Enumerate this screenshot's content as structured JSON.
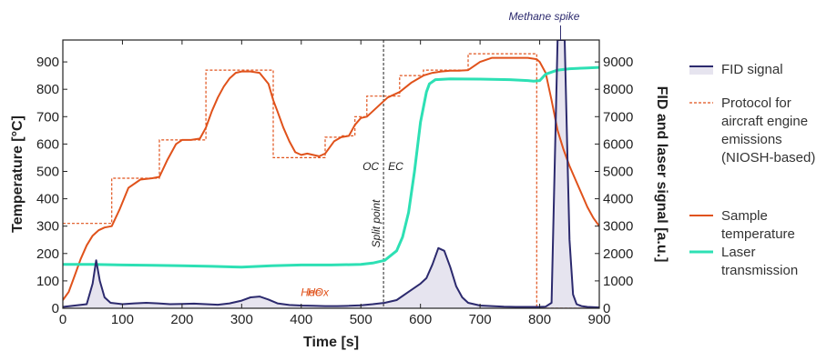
{
  "chart_data": {
    "type": "line",
    "xlabel": "Time [s]",
    "ylabel_left": "Temperature [°C]",
    "ylabel_right": "FID and laser signal [a.u.]",
    "xlim": [
      0,
      900
    ],
    "ylim_left": [
      0,
      980
    ],
    "ylim_right": [
      0,
      9800
    ],
    "x_ticks": [
      0,
      100,
      200,
      300,
      400,
      500,
      600,
      700,
      800,
      900
    ],
    "y_left_ticks": [
      0,
      100,
      200,
      300,
      400,
      500,
      600,
      700,
      800,
      900
    ],
    "y_right_ticks": [
      0,
      1000,
      2000,
      3000,
      4000,
      5000,
      6000,
      7000,
      8000,
      9000
    ],
    "grid": false,
    "legend_position": "right",
    "series": [
      {
        "name": "FID signal",
        "axis": "right",
        "style": "filled-line",
        "color": "#2c2a6e",
        "fill": "#e6e4ef",
        "x": [
          0,
          40,
          50,
          56,
          62,
          70,
          80,
          100,
          120,
          140,
          160,
          180,
          200,
          220,
          240,
          260,
          280,
          300,
          315,
          330,
          345,
          360,
          380,
          400,
          420,
          440,
          460,
          480,
          500,
          520,
          540,
          560,
          580,
          600,
          610,
          620,
          630,
          640,
          650,
          660,
          670,
          680,
          700,
          720,
          740,
          760,
          780,
          800,
          810,
          820,
          826,
          830,
          834,
          838,
          842,
          846,
          850,
          856,
          862,
          870,
          880,
          900
        ],
        "values": [
          50,
          150,
          900,
          1750,
          1000,
          400,
          200,
          150,
          180,
          200,
          180,
          150,
          160,
          170,
          150,
          130,
          180,
          280,
          400,
          430,
          320,
          180,
          120,
          100,
          90,
          80,
          80,
          90,
          110,
          150,
          200,
          300,
          600,
          900,
          1100,
          1600,
          2200,
          2100,
          1500,
          800,
          400,
          200,
          100,
          80,
          60,
          50,
          50,
          50,
          60,
          200,
          6000,
          9800,
          9800,
          9800,
          9800,
          6000,
          2500,
          500,
          150,
          80,
          50,
          30
        ]
      },
      {
        "name": "Protocol for aircraft engine emissions (NIOSH-based)",
        "axis": "left",
        "style": "dashed-step",
        "color": "#e0521b",
        "x": [
          0,
          82,
          82,
          162,
          162,
          240,
          240,
          353,
          353,
          440,
          440,
          467,
          467,
          490,
          490,
          510,
          510,
          530,
          530,
          545,
          545,
          565,
          565,
          585,
          585,
          605,
          605,
          635,
          635,
          680,
          680,
          795,
          795,
          900
        ],
        "values": [
          310,
          310,
          475,
          475,
          615,
          615,
          870,
          870,
          550,
          550,
          625,
          625,
          630,
          630,
          700,
          700,
          775,
          775,
          775,
          775,
          775,
          775,
          850,
          850,
          850,
          850,
          870,
          870,
          870,
          870,
          930,
          930,
          0,
          0
        ]
      },
      {
        "name": "Sample temperature",
        "axis": "left",
        "style": "line",
        "color": "#e0521b",
        "x": [
          0,
          10,
          20,
          30,
          40,
          50,
          60,
          70,
          82,
          95,
          110,
          130,
          150,
          162,
          175,
          190,
          200,
          215,
          230,
          240,
          250,
          260,
          270,
          280,
          290,
          300,
          315,
          330,
          345,
          353,
          360,
          370,
          380,
          390,
          400,
          410,
          420,
          430,
          440,
          455,
          467,
          480,
          490,
          500,
          510,
          520,
          530,
          545,
          565,
          585,
          605,
          620,
          635,
          650,
          665,
          680,
          700,
          720,
          740,
          760,
          780,
          795,
          800,
          810,
          820,
          830,
          840,
          850,
          860,
          870,
          880,
          890,
          900
        ],
        "values": [
          30,
          60,
          120,
          180,
          230,
          265,
          285,
          295,
          300,
          360,
          440,
          470,
          475,
          480,
          540,
          600,
          615,
          615,
          620,
          660,
          720,
          770,
          810,
          840,
          860,
          865,
          865,
          860,
          820,
          760,
          720,
          660,
          610,
          570,
          560,
          565,
          560,
          555,
          565,
          610,
          625,
          630,
          670,
          695,
          700,
          720,
          740,
          770,
          790,
          825,
          850,
          860,
          865,
          868,
          868,
          870,
          900,
          915,
          915,
          915,
          915,
          910,
          900,
          860,
          760,
          650,
          580,
          520,
          470,
          420,
          370,
          330,
          300
        ]
      },
      {
        "name": "Laser transmission",
        "axis": "right",
        "style": "line",
        "color": "#2de0b4",
        "x": [
          0,
          50,
          100,
          150,
          200,
          250,
          300,
          350,
          400,
          450,
          500,
          520,
          540,
          560,
          570,
          580,
          590,
          600,
          610,
          615,
          625,
          650,
          700,
          750,
          780,
          790,
          800,
          810,
          830,
          850,
          880,
          900
        ],
        "values": [
          1600,
          1600,
          1580,
          1570,
          1550,
          1530,
          1500,
          1550,
          1580,
          1580,
          1600,
          1650,
          1750,
          2100,
          2600,
          3500,
          5000,
          6800,
          7900,
          8200,
          8350,
          8380,
          8370,
          8350,
          8320,
          8300,
          8320,
          8550,
          8700,
          8750,
          8780,
          8800
        ]
      }
    ],
    "annotations": [
      {
        "text": "Methane spike",
        "x": 835,
        "y_right": 9800,
        "color": "#2c2a6e"
      },
      {
        "text": "Split point",
        "x": 538,
        "color": "#222",
        "rotated": true
      },
      {
        "text": "OC",
        "x": 527,
        "y_left": 505,
        "color": "#222"
      },
      {
        "text": "EC",
        "x": 548,
        "y_left": 505,
        "color": "#222"
      },
      {
        "text": "He",
        "x": 423,
        "y_left": 45,
        "color": "#e0521b"
      },
      {
        "text": "HeOx",
        "x": 460,
        "y_left": 45,
        "color": "#e0521b"
      }
    ],
    "vertical_lines": [
      {
        "x": 538,
        "color": "#222",
        "style": "dashed"
      }
    ]
  }
}
